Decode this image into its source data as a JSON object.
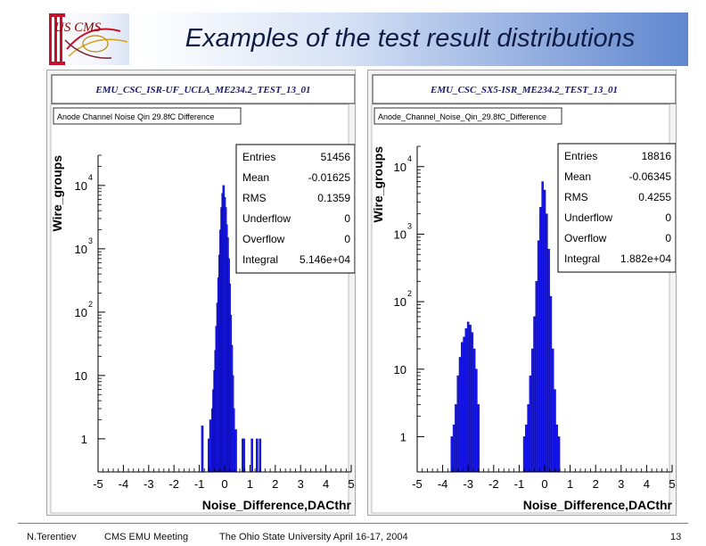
{
  "slide": {
    "title": "Examples of the test result distributions",
    "logo_text": "US CMS"
  },
  "footer": {
    "author": "N.Terentiev",
    "meeting": "CMS EMU Meeting",
    "venue_date": "The Ohio State University   April 16-17, 2004",
    "page": "13"
  },
  "colors": {
    "bars": "#1a1aee",
    "bar_edge": "#000088",
    "panel": "#f3f3f3",
    "frame": "#ffffff",
    "title_gradient_end": "#5f86cf",
    "title_text": "#101c44"
  },
  "chart_data": [
    {
      "type": "bar",
      "canvas_title": "EMU_CSC_ISR-UF_UCLA_ME234.2_TEST_13_01",
      "histogram_title": "Anode Channel Noise Qin 29.8fC Difference",
      "xlabel": "Noise_Difference,DACthr",
      "ylabel": "Wire_groups",
      "log_y": true,
      "xlim": [
        -5,
        5
      ],
      "ylim": [
        0.3,
        30000
      ],
      "x_ticks": [
        "-5",
        "-4",
        "-3",
        "-2",
        "-1",
        "0",
        "1",
        "2",
        "3",
        "4",
        "5"
      ],
      "y_ticks": [
        {
          "base": "1",
          "exp": "",
          "value": 1
        },
        {
          "base": "10",
          "exp": "",
          "value": 10
        },
        {
          "base": "10",
          "exp": "2",
          "value": 100
        },
        {
          "base": "10",
          "exp": "3",
          "value": 1000
        },
        {
          "base": "10",
          "exp": "4",
          "value": 10000
        }
      ],
      "stats": [
        {
          "label": "Entries",
          "value": "51456"
        },
        {
          "label": "Mean",
          "value": "-0.01625"
        },
        {
          "label": "RMS",
          "value": "0.1359"
        },
        {
          "label": "Underflow",
          "value": "0"
        },
        {
          "label": "Overflow",
          "value": "0"
        },
        {
          "label": "Integral",
          "value": "5.146e+04"
        }
      ],
      "bins": [
        {
          "x": -0.88,
          "y": 1.6
        },
        {
          "x": -0.62,
          "y": 1
        },
        {
          "x": -0.56,
          "y": 2
        },
        {
          "x": -0.48,
          "y": 3
        },
        {
          "x": -0.44,
          "y": 6
        },
        {
          "x": -0.4,
          "y": 12
        },
        {
          "x": -0.36,
          "y": 25
        },
        {
          "x": -0.32,
          "y": 60
        },
        {
          "x": -0.28,
          "y": 140
        },
        {
          "x": -0.24,
          "y": 350
        },
        {
          "x": -0.2,
          "y": 800
        },
        {
          "x": -0.16,
          "y": 2000
        },
        {
          "x": -0.12,
          "y": 4500
        },
        {
          "x": -0.08,
          "y": 7500
        },
        {
          "x": -0.04,
          "y": 10000
        },
        {
          "x": 0.0,
          "y": 6500
        },
        {
          "x": 0.04,
          "y": 4500
        },
        {
          "x": 0.08,
          "y": 2400
        },
        {
          "x": 0.12,
          "y": 1500
        },
        {
          "x": 0.16,
          "y": 700
        },
        {
          "x": 0.2,
          "y": 280
        },
        {
          "x": 0.24,
          "y": 90
        },
        {
          "x": 0.28,
          "y": 30
        },
        {
          "x": 0.32,
          "y": 10
        },
        {
          "x": 0.36,
          "y": 3
        },
        {
          "x": 0.44,
          "y": 1.4
        },
        {
          "x": 0.72,
          "y": 1
        },
        {
          "x": 0.76,
          "y": 1
        },
        {
          "x": 1.08,
          "y": 1
        },
        {
          "x": 1.28,
          "y": 1
        },
        {
          "x": 1.4,
          "y": 1
        }
      ]
    },
    {
      "type": "bar",
      "canvas_title": "EMU_CSC_SX5-ISR_ME234.2_TEST_13_01",
      "histogram_title": "Anode_Channel_Noise_Qin_29.8fC_Difference",
      "xlabel": "Noise_Difference,DACthr",
      "ylabel": "Wire_groups",
      "log_y": true,
      "xlim": [
        -5,
        5
      ],
      "ylim": [
        0.3,
        20000
      ],
      "x_ticks": [
        "-5",
        "-4",
        "-3",
        "-2",
        "-1",
        "0",
        "1",
        "2",
        "3",
        "4",
        "5"
      ],
      "y_ticks": [
        {
          "base": "1",
          "exp": "",
          "value": 1
        },
        {
          "base": "10",
          "exp": "",
          "value": 10
        },
        {
          "base": "10",
          "exp": "2",
          "value": 100
        },
        {
          "base": "10",
          "exp": "3",
          "value": 1000
        },
        {
          "base": "10",
          "exp": "4",
          "value": 10000
        }
      ],
      "stats": [
        {
          "label": "Entries",
          "value": "18816"
        },
        {
          "label": "Mean",
          "value": "-0.06345"
        },
        {
          "label": "RMS",
          "value": "0.4255"
        },
        {
          "label": "Underflow",
          "value": "0"
        },
        {
          "label": "Overflow",
          "value": "0"
        },
        {
          "label": "Integral",
          "value": "1.882e+04"
        }
      ],
      "bins": [
        {
          "x": -3.64,
          "y": 1
        },
        {
          "x": -3.56,
          "y": 1.5
        },
        {
          "x": -3.48,
          "y": 3
        },
        {
          "x": -3.4,
          "y": 8
        },
        {
          "x": -3.32,
          "y": 15
        },
        {
          "x": -3.24,
          "y": 25
        },
        {
          "x": -3.16,
          "y": 30
        },
        {
          "x": -3.08,
          "y": 40
        },
        {
          "x": -3.0,
          "y": 50
        },
        {
          "x": -2.92,
          "y": 45
        },
        {
          "x": -2.84,
          "y": 35
        },
        {
          "x": -2.76,
          "y": 20
        },
        {
          "x": -2.68,
          "y": 10
        },
        {
          "x": -2.6,
          "y": 3
        },
        {
          "x": -0.8,
          "y": 1
        },
        {
          "x": -0.72,
          "y": 1.5
        },
        {
          "x": -0.64,
          "y": 3
        },
        {
          "x": -0.56,
          "y": 8
        },
        {
          "x": -0.48,
          "y": 20
        },
        {
          "x": -0.4,
          "y": 60
        },
        {
          "x": -0.32,
          "y": 200
        },
        {
          "x": -0.24,
          "y": 800
        },
        {
          "x": -0.16,
          "y": 2500
        },
        {
          "x": -0.08,
          "y": 6000
        },
        {
          "x": 0.0,
          "y": 4500
        },
        {
          "x": 0.08,
          "y": 2000
        },
        {
          "x": 0.16,
          "y": 600
        },
        {
          "x": 0.24,
          "y": 120
        },
        {
          "x": 0.32,
          "y": 20
        },
        {
          "x": 0.4,
          "y": 5
        },
        {
          "x": 0.48,
          "y": 1.5
        },
        {
          "x": 0.56,
          "y": 1
        }
      ]
    }
  ]
}
